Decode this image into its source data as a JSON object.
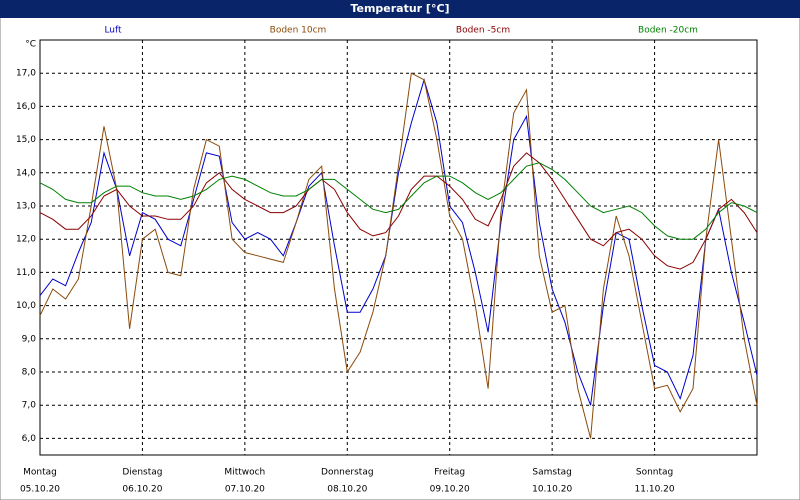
{
  "chart_data": {
    "type": "line",
    "title": "Temperatur [°C]",
    "y_unit": "°C",
    "x": [
      0,
      0.125,
      0.25,
      0.375,
      0.5,
      0.625,
      0.75,
      0.875,
      1,
      1.125,
      1.25,
      1.375,
      1.5,
      1.625,
      1.75,
      1.875,
      2,
      2.125,
      2.25,
      2.375,
      2.5,
      2.625,
      2.75,
      2.875,
      3,
      3.125,
      3.25,
      3.375,
      3.5,
      3.625,
      3.75,
      3.875,
      4,
      4.125,
      4.25,
      4.375,
      4.5,
      4.625,
      4.75,
      4.875,
      5,
      5.125,
      5.25,
      5.375,
      5.5,
      5.625,
      5.75,
      5.875,
      6,
      6.125,
      6.25,
      6.375,
      6.5,
      6.625,
      6.75,
      6.875,
      7
    ],
    "xlim": [
      0,
      7
    ],
    "xticks": [
      {
        "value": 0,
        "label": "Montag"
      },
      {
        "value": 1,
        "label": "Dienstag"
      },
      {
        "value": 2,
        "label": "Mittwoch"
      },
      {
        "value": 3,
        "label": "Donnerstag"
      },
      {
        "value": 4,
        "label": "Freitag"
      },
      {
        "value": 5,
        "label": "Samstag"
      },
      {
        "value": 6,
        "label": "Sonntag"
      }
    ],
    "xtick_dates": [
      "05.10.20",
      "06.10.20",
      "07.10.20",
      "08.10.20",
      "09.10.20",
      "10.10.20",
      "11.10.20"
    ],
    "ylim": [
      5.5,
      18.0
    ],
    "yticks": [
      {
        "value": 6,
        "label": "6,0"
      },
      {
        "value": 7,
        "label": "7,0"
      },
      {
        "value": 8,
        "label": "8,0"
      },
      {
        "value": 9,
        "label": "9,0"
      },
      {
        "value": 10,
        "label": "10,0"
      },
      {
        "value": 11,
        "label": "11,0"
      },
      {
        "value": 12,
        "label": "12,0"
      },
      {
        "value": 13,
        "label": "13,0"
      },
      {
        "value": 14,
        "label": "14,0"
      },
      {
        "value": 15,
        "label": "15,0"
      },
      {
        "value": 16,
        "label": "16,0"
      },
      {
        "value": 17,
        "label": "17,0"
      }
    ],
    "grid": true,
    "series": [
      {
        "name": "Luft",
        "color": "#0000cc",
        "values": [
          10.3,
          10.8,
          10.6,
          11.6,
          12.5,
          14.6,
          13.5,
          11.5,
          12.8,
          12.6,
          12.0,
          11.8,
          13.2,
          14.6,
          14.5,
          12.5,
          12.0,
          12.2,
          12.0,
          11.5,
          12.5,
          13.6,
          14.0,
          11.8,
          9.8,
          9.8,
          10.5,
          11.5,
          14.0,
          15.5,
          16.8,
          15.5,
          13.0,
          12.5,
          11.0,
          9.2,
          12.5,
          15.0,
          15.7,
          12.5,
          10.5,
          9.5,
          8.0,
          7.0,
          10.0,
          12.2,
          12.0,
          10.0,
          8.2,
          8.0,
          7.2,
          8.5,
          12.0,
          12.9,
          11.0,
          9.5,
          7.9
        ]
      },
      {
        "name": "Boden 10cm",
        "color": "#8b4a0b",
        "values": [
          9.7,
          10.5,
          10.2,
          10.8,
          13.0,
          15.4,
          13.5,
          9.3,
          12.0,
          12.3,
          11.0,
          10.9,
          13.5,
          15.0,
          14.8,
          12.0,
          11.6,
          11.5,
          11.4,
          11.3,
          12.5,
          13.8,
          14.2,
          10.5,
          8.0,
          8.6,
          9.8,
          11.5,
          14.2,
          17.0,
          16.8,
          15.0,
          12.7,
          12.0,
          10.0,
          7.5,
          12.8,
          15.8,
          16.5,
          11.5,
          9.8,
          10.0,
          7.5,
          6.0,
          10.5,
          12.7,
          11.5,
          9.5,
          7.5,
          7.6,
          6.8,
          7.5,
          12.0,
          15.0,
          12.0,
          9.0,
          7.0
        ]
      },
      {
        "name": "Boden -5cm",
        "color": "#8b0000",
        "values": [
          12.8,
          12.6,
          12.3,
          12.3,
          12.7,
          13.3,
          13.5,
          13.0,
          12.7,
          12.7,
          12.6,
          12.6,
          13.0,
          13.7,
          14.0,
          13.5,
          13.2,
          13.0,
          12.8,
          12.8,
          13.0,
          13.5,
          13.8,
          13.5,
          12.8,
          12.3,
          12.1,
          12.2,
          12.7,
          13.5,
          13.9,
          13.9,
          13.6,
          13.2,
          12.6,
          12.4,
          13.2,
          14.2,
          14.6,
          14.3,
          13.8,
          13.2,
          12.6,
          12.0,
          11.8,
          12.2,
          12.3,
          12.0,
          11.5,
          11.2,
          11.1,
          11.3,
          12.0,
          12.9,
          13.2,
          12.8,
          12.2
        ]
      },
      {
        "name": "Boden -20cm",
        "color": "#008000",
        "values": [
          13.7,
          13.5,
          13.2,
          13.1,
          13.1,
          13.4,
          13.6,
          13.6,
          13.4,
          13.3,
          13.3,
          13.2,
          13.3,
          13.5,
          13.8,
          13.9,
          13.8,
          13.6,
          13.4,
          13.3,
          13.3,
          13.5,
          13.8,
          13.8,
          13.5,
          13.2,
          12.9,
          12.8,
          12.9,
          13.3,
          13.7,
          13.9,
          13.9,
          13.7,
          13.4,
          13.2,
          13.4,
          13.8,
          14.2,
          14.3,
          14.1,
          13.8,
          13.4,
          13.0,
          12.8,
          12.9,
          13.0,
          12.8,
          12.4,
          12.1,
          12.0,
          12.0,
          12.3,
          12.8,
          13.1,
          13.0,
          12.8
        ]
      }
    ]
  }
}
